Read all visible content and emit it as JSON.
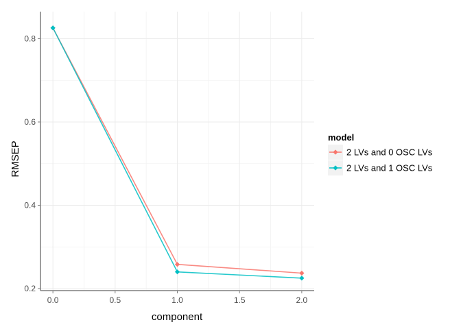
{
  "chart_data": {
    "type": "line",
    "title": "",
    "xlabel": "component",
    "ylabel": "RMSEP",
    "xlim": [
      -0.1,
      2.1
    ],
    "ylim": [
      0.195,
      0.865
    ],
    "x_ticks": [
      "0.0",
      "0.5",
      "1.0",
      "1.5",
      "2.0"
    ],
    "x_tick_values": [
      0,
      0.5,
      1.0,
      1.5,
      2.0
    ],
    "y_ticks": [
      "0.2",
      "0.4",
      "0.6",
      "0.8"
    ],
    "y_tick_values": [
      0.2,
      0.4,
      0.6,
      0.8
    ],
    "grid": true,
    "legend_position": "right",
    "legend_title": "model",
    "x": [
      0,
      1,
      2
    ],
    "series": [
      {
        "name": "2 LVs and 0 OSC LVs",
        "color": "#f8766d",
        "values": [
          0.826,
          0.258,
          0.237
        ]
      },
      {
        "name": "2 LVs and 1 OSC LVs",
        "color": "#00bfc4",
        "values": [
          0.826,
          0.24,
          0.225
        ]
      }
    ]
  }
}
